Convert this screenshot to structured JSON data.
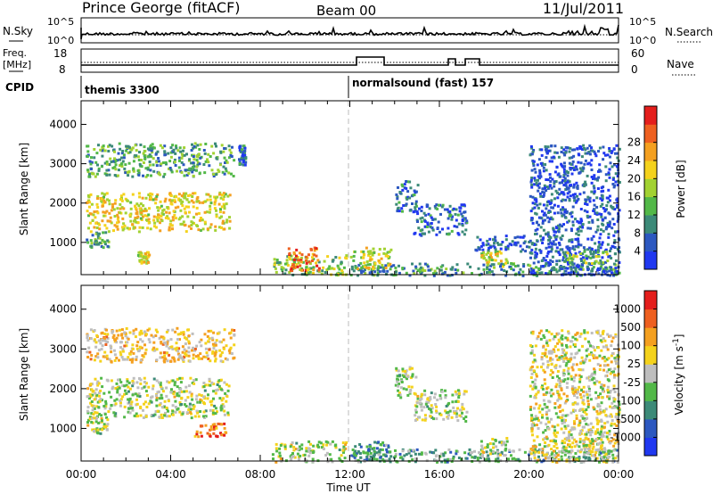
{
  "header": {
    "station": "Prince George (fitACF)",
    "beam": "Beam 00",
    "date": "11/Jul/2011"
  },
  "noise_panel": {
    "left_label": "N.Sky",
    "left_ticks": [
      "10^5",
      "10^0"
    ],
    "right_label": "N.Search",
    "right_ticks": [
      "10^5",
      "10^0"
    ]
  },
  "freq_panel": {
    "left_label_1": "Freq.",
    "left_label_2": "[MHz]",
    "left_ticks": [
      "18",
      "8"
    ],
    "right_label": "Nave",
    "right_ticks": [
      "60",
      "0"
    ]
  },
  "cpid_panel": {
    "label": "CPID",
    "programs": [
      {
        "name": "themis 3300",
        "start_hour": 0
      },
      {
        "name": "normalsound (fast) 157",
        "start_hour": 12
      }
    ]
  },
  "chart_data": [
    {
      "type": "heatmap",
      "panel": "power",
      "ylabel": "Slant Range [km]",
      "xlabel": "Time UT",
      "x_ticks": [
        "00:00",
        "04:00",
        "08:00",
        "12:00",
        "16:00",
        "20:00",
        "00:00"
      ],
      "x_range_hours": [
        0,
        24
      ],
      "y_ticks": [
        1000,
        2000,
        3000,
        4000
      ],
      "ylim": [
        180,
        4600
      ],
      "colorbar": {
        "label": "Power [dB]",
        "ticks": [
          "4",
          "8",
          "12",
          "16",
          "20",
          "24",
          "28"
        ],
        "colors": [
          "#2038f0",
          "#2c58c0",
          "#3c8a78",
          "#52b848",
          "#a2d232",
          "#f4d21c",
          "#f4a020",
          "#ee6020",
          "#e41e1c"
        ]
      },
      "echo_regions": [
        {
          "t0": 0.2,
          "t1": 6.8,
          "r0": 2700,
          "r1": 3550,
          "level": 0.35
        },
        {
          "t0": 0.2,
          "t1": 6.6,
          "r0": 1300,
          "r1": 2300,
          "level": 0.6
        },
        {
          "t0": 0.2,
          "t1": 1.2,
          "r0": 900,
          "r1": 1300,
          "level": 0.3
        },
        {
          "t0": 2.5,
          "t1": 3.0,
          "r0": 500,
          "r1": 800,
          "level": 0.55
        },
        {
          "t0": 7.0,
          "t1": 7.3,
          "r0": 3000,
          "r1": 3500,
          "level": 0.2
        },
        {
          "t0": 8.5,
          "t1": 11.8,
          "r0": 180,
          "r1": 700,
          "level": 0.45
        },
        {
          "t0": 9.2,
          "t1": 10.6,
          "r0": 300,
          "r1": 900,
          "level": 0.8
        },
        {
          "t0": 12.0,
          "t1": 24.0,
          "r0": 180,
          "r1": 500,
          "level": 0.3
        },
        {
          "t0": 12.0,
          "t1": 13.8,
          "r0": 350,
          "r1": 900,
          "level": 0.55
        },
        {
          "t0": 14.0,
          "t1": 15.0,
          "r0": 1800,
          "r1": 2600,
          "level": 0.2
        },
        {
          "t0": 14.8,
          "t1": 17.2,
          "r0": 1200,
          "r1": 2000,
          "level": 0.2
        },
        {
          "t0": 17.5,
          "t1": 20.0,
          "r0": 800,
          "r1": 1200,
          "level": 0.15
        },
        {
          "t0": 17.8,
          "t1": 19.0,
          "r0": 350,
          "r1": 800,
          "level": 0.55
        },
        {
          "t0": 20.0,
          "t1": 24.0,
          "r0": 180,
          "r1": 3500,
          "level": 0.15
        },
        {
          "t0": 21.5,
          "t1": 23.5,
          "r0": 450,
          "r1": 800,
          "level": 0.45
        }
      ]
    },
    {
      "type": "heatmap",
      "panel": "velocity",
      "ylabel": "Slant Range [km]",
      "xlabel": "Time UT",
      "x_ticks": [
        "00:00",
        "04:00",
        "08:00",
        "12:00",
        "16:00",
        "20:00",
        "00:00"
      ],
      "x_range_hours": [
        0,
        24
      ],
      "y_ticks": [
        1000,
        2000,
        3000,
        4000
      ],
      "ylim": [
        180,
        4600
      ],
      "colorbar": {
        "label": "Velocity [m s^-1]",
        "ticks": [
          "1000",
          "500",
          "100",
          "25",
          "-25",
          "-100",
          "-500",
          "-1000"
        ],
        "colors": [
          "#2038f0",
          "#2c58c0",
          "#3c8a78",
          "#52b848",
          "#bebebe",
          "#f4d21c",
          "#f4a020",
          "#ee6020",
          "#e41e1c"
        ]
      },
      "echo_regions": [
        {
          "t0": 0.2,
          "t1": 6.8,
          "r0": 2700,
          "r1": 3550,
          "level": 0.62
        },
        {
          "t0": 0.2,
          "t1": 6.6,
          "r0": 1300,
          "r1": 2300,
          "level": 0.5
        },
        {
          "t0": 0.2,
          "t1": 1.2,
          "r0": 900,
          "r1": 1300,
          "level": 0.5
        },
        {
          "t0": 5.0,
          "t1": 6.5,
          "r0": 800,
          "r1": 1150,
          "level": 0.8
        },
        {
          "t0": 8.5,
          "t1": 11.8,
          "r0": 180,
          "r1": 700,
          "level": 0.5
        },
        {
          "t0": 12.0,
          "t1": 24.0,
          "r0": 180,
          "r1": 500,
          "level": 0.35
        },
        {
          "t0": 12.0,
          "t1": 13.8,
          "r0": 200,
          "r1": 700,
          "level": 0.3
        },
        {
          "t0": 14.0,
          "t1": 15.0,
          "r0": 1800,
          "r1": 2600,
          "level": 0.5
        },
        {
          "t0": 14.8,
          "t1": 17.2,
          "r0": 1200,
          "r1": 2000,
          "level": 0.5
        },
        {
          "t0": 17.8,
          "t1": 19.0,
          "r0": 350,
          "r1": 800,
          "level": 0.5
        },
        {
          "t0": 20.0,
          "t1": 24.0,
          "r0": 180,
          "r1": 3500,
          "level": 0.55
        },
        {
          "t0": 21.5,
          "t1": 23.5,
          "r0": 450,
          "r1": 800,
          "level": 0.5
        }
      ]
    }
  ]
}
